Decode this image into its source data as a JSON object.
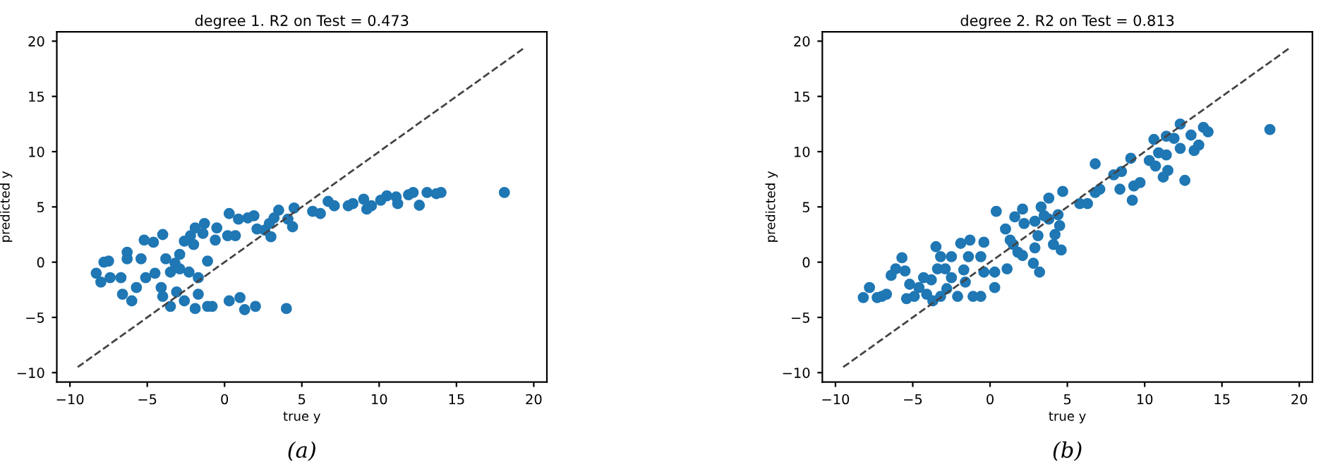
{
  "chart_data": [
    {
      "type": "scatter",
      "title": "degree 1. R2 on Test = 0.473",
      "xlabel": "true y",
      "ylabel": "predicted y",
      "annotations": [
        "(a)"
      ],
      "xlim": [
        -10.85,
        20.85
      ],
      "ylim": [
        -10.85,
        20.85
      ],
      "xticks": [
        -10,
        -5,
        0,
        5,
        10,
        15,
        20
      ],
      "yticks": [
        -10,
        -5,
        0,
        5,
        10,
        15,
        20
      ],
      "grid": false,
      "series": [
        {
          "marker": "circle",
          "color": "#1f77b4",
          "x": [
            18.1,
            14.0,
            13.7,
            13.1,
            12.2,
            11.9,
            12.6,
            11.1,
            11.2,
            10.5,
            10.1,
            9.5,
            9.2,
            9.0,
            8.3,
            8.0,
            7.1,
            6.7,
            6.2,
            5.7,
            4.5,
            4.4,
            4.1,
            3.5,
            3.2,
            2.9,
            3.0,
            2.6,
            2.1,
            1.9,
            1.5,
            0.9,
            0.3,
            0.7,
            0.2,
            -0.5,
            -0.6,
            -1.3,
            -1.4,
            -1.9,
            -2.2,
            -2.0,
            -2.6,
            -2.9,
            -3.2,
            -2.9,
            -3.5,
            -4.0,
            -4.6,
            -5.2,
            -5.4,
            -6.3,
            -6.3,
            -7.5,
            -7.8,
            -8.3,
            -8.0,
            -7.4,
            -6.7,
            -6.6,
            -6.0,
            -5.7,
            -5.1,
            -4.5,
            -4.1,
            -4.0,
            -3.5,
            -3.1,
            -2.6,
            -2.3,
            -1.7,
            -1.9,
            -1.1,
            -0.8,
            0.3,
            1.0,
            1.3,
            2.0,
            4.0,
            -1.1,
            -1.7,
            -3.8
          ],
          "values": [
            6.3,
            6.3,
            6.2,
            6.3,
            6.3,
            6.1,
            5.15,
            5.9,
            5.3,
            6.0,
            5.6,
            5.1,
            4.8,
            5.7,
            5.3,
            5.1,
            5.1,
            5.5,
            4.4,
            4.6,
            4.9,
            3.2,
            3.9,
            4.7,
            4.0,
            3.5,
            2.3,
            2.9,
            3.0,
            4.2,
            4.0,
            3.9,
            4.4,
            2.4,
            2.4,
            3.1,
            2.0,
            3.5,
            2.6,
            3.1,
            2.4,
            1.6,
            1.9,
            0.7,
            -0.1,
            -0.6,
            -0.9,
            2.5,
            1.8,
            2.0,
            0.3,
            0.9,
            0.3,
            0.1,
            0.0,
            -1.0,
            -1.8,
            -1.4,
            -1.4,
            -2.9,
            -3.5,
            -2.3,
            -1.4,
            -1.0,
            -2.3,
            -3.1,
            -4.0,
            -2.7,
            -3.5,
            -0.9,
            -2.9,
            -4.2,
            -4.0,
            -4.0,
            -3.5,
            -3.2,
            -4.3,
            -4.0,
            -4.2,
            0.1,
            -1.4,
            0.3
          ]
        },
        {
          "type": "line",
          "color": "#444444",
          "line_style": "dashed",
          "marker": "none",
          "x": [
            -9.5,
            19.4
          ],
          "values": [
            -9.5,
            19.4
          ]
        }
      ]
    },
    {
      "type": "scatter",
      "title": "degree 2. R2 on Test = 0.813",
      "xlabel": "true y",
      "ylabel": "predicted y",
      "annotations": [
        "(b)"
      ],
      "xlim": [
        -10.85,
        20.85
      ],
      "ylim": [
        -10.85,
        20.85
      ],
      "xticks": [
        -10,
        -5,
        0,
        5,
        10,
        15,
        20
      ],
      "yticks": [
        -10,
        -5,
        0,
        5,
        10,
        15,
        20
      ],
      "grid": false,
      "series": [
        {
          "marker": "circle",
          "color": "#1f77b4",
          "x": [
            18.1,
            14.1,
            13.8,
            13.5,
            13.2,
            13.0,
            12.6,
            12.3,
            12.3,
            11.9,
            11.4,
            11.4,
            11.5,
            11.2,
            10.9,
            10.7,
            10.6,
            10.3,
            9.7,
            9.3,
            9.2,
            9.1,
            8.5,
            8.4,
            8.0,
            6.8,
            7.1,
            6.8,
            6.3,
            5.8,
            4.7,
            4.6,
            4.5,
            4.4,
            4.2,
            4.1,
            3.8,
            3.5,
            3.8,
            3.3,
            3.1,
            3.2,
            2.9,
            2.8,
            2.9,
            2.2,
            2.1,
            2.1,
            1.6,
            1.8,
            1.5,
            1.3,
            1.0,
            1.1,
            0.4,
            0.3,
            0.3,
            -0.4,
            -0.6,
            -0.4,
            -0.6,
            -1.3,
            -1.4,
            -1.7,
            -1.6,
            -1.9,
            -2.5,
            -2.5,
            -2.8,
            -3.2,
            -3.5,
            -3.4,
            -3.8,
            -4.3,
            -4.6,
            -4.9,
            -5.2,
            -5.7,
            -6.1,
            -6.4,
            -6.7,
            -7.0,
            -7.8,
            -8.2,
            -7.3,
            -5.5,
            -4.1,
            -3.2,
            -2.1,
            -1.1,
            -2.9,
            -5.4,
            -3.7
          ],
          "values": [
            12.0,
            11.8,
            12.2,
            10.6,
            10.1,
            11.5,
            7.4,
            12.5,
            10.3,
            11.2,
            11.4,
            9.7,
            8.3,
            7.7,
            9.9,
            8.7,
            11.1,
            9.2,
            7.2,
            6.9,
            5.6,
            9.4,
            8.2,
            6.6,
            7.9,
            8.9,
            6.6,
            6.3,
            5.3,
            5.3,
            6.4,
            1.1,
            3.3,
            4.3,
            2.5,
            1.6,
            3.9,
            4.2,
            5.8,
            5.0,
            2.4,
            -0.9,
            1.3,
            -0.1,
            3.7,
            3.5,
            4.8,
            0.6,
            4.1,
            0.9,
            1.6,
            2.0,
            3.0,
            -0.6,
            4.6,
            -0.9,
            -2.3,
            1.8,
            0.5,
            -0.9,
            -3.1,
            2.0,
            0.5,
            -0.7,
            -1.8,
            1.7,
            0.5,
            -1.4,
            -2.4,
            0.5,
            1.4,
            -0.6,
            -1.6,
            -1.4,
            -2.3,
            -3.1,
            -2.0,
            0.4,
            -0.6,
            -1.2,
            -2.9,
            -3.1,
            -2.3,
            -3.2,
            -3.2,
            -0.8,
            -2.9,
            -3.1,
            -3.1,
            -3.1,
            -0.6,
            -3.3,
            -3.5
          ]
        },
        {
          "type": "line",
          "color": "#444444",
          "line_style": "dashed",
          "marker": "none",
          "x": [
            -9.5,
            19.4
          ],
          "values": [
            -9.5,
            19.4
          ]
        }
      ]
    }
  ]
}
